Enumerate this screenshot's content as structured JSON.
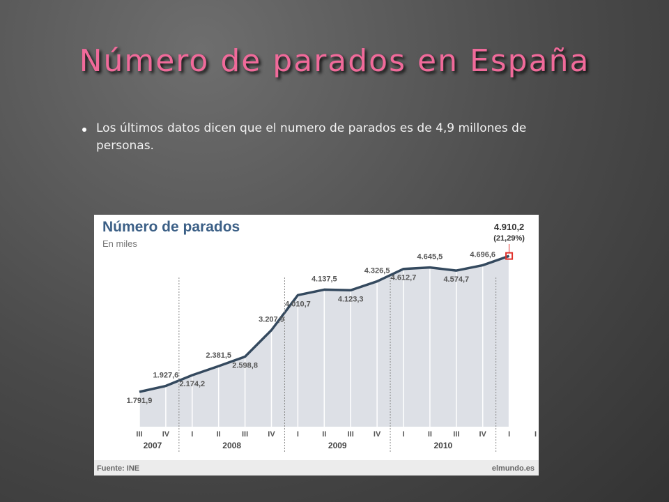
{
  "slide": {
    "title": "Número de parados en España",
    "bullet": "Los últimos datos dicen que el numero de parados es de 4,9 millones de personas."
  },
  "chart_data": {
    "type": "line",
    "title": "Número de parados",
    "subtitle": "En miles",
    "categories": [
      "III",
      "IV",
      "I",
      "II",
      "III",
      "IV",
      "I",
      "II",
      "III",
      "IV",
      "I",
      "II",
      "III",
      "IV",
      "I",
      "I"
    ],
    "years": [
      "2007",
      "2008",
      "2009",
      "2010"
    ],
    "values": [
      1791.9,
      1927.6,
      2174.2,
      2381.5,
      2598.8,
      3207.9,
      4010.7,
      4137.5,
      4123.3,
      4326.5,
      4612.7,
      4645.5,
      4574.7,
      4696.6,
      4910.2,
      null
    ],
    "value_labels": [
      "1.791,9",
      "1.927,6",
      "2.174,2",
      "2.381,5",
      "2.598,8",
      "3.207,9",
      "4.010,7",
      "4.137,5",
      "4.123,3",
      "4.326,5",
      "4.612,7",
      "4.645,5",
      "4.574,7",
      "4.696,6",
      "4.910,2",
      null
    ],
    "annotation": "(21,29%)",
    "color": "#34495e",
    "area_color": "#dde0e6",
    "marker_color": "#e0302a",
    "source": "Fuente: INE",
    "credit": "elmundo.es"
  }
}
